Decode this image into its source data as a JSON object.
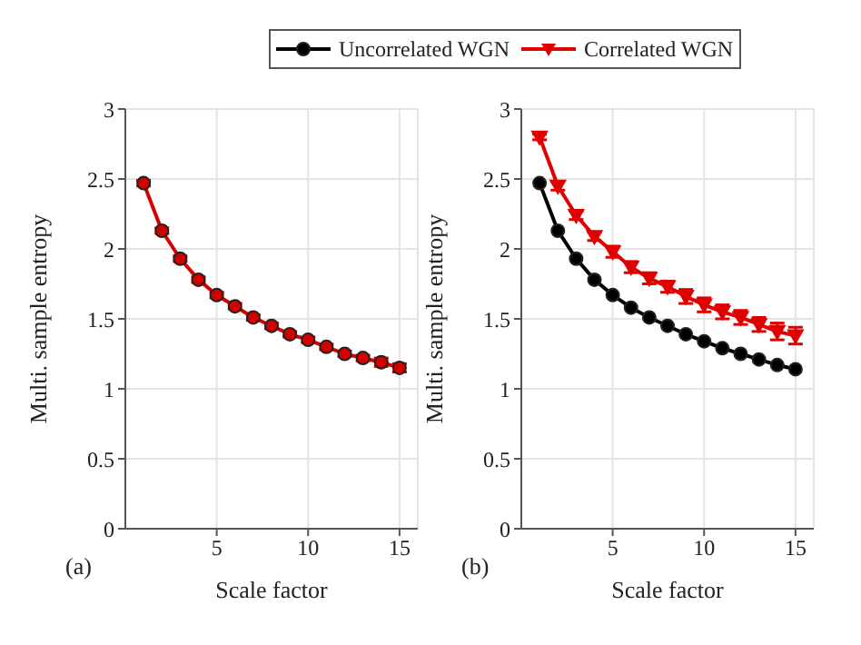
{
  "chart_data": [
    {
      "type": "line",
      "xlabel": "Scale factor",
      "ylabel": "Multi. sample entropy",
      "annotations": [
        "(a)"
      ],
      "x": [
        1,
        2,
        3,
        4,
        5,
        6,
        7,
        8,
        9,
        10,
        11,
        12,
        13,
        14,
        15
      ],
      "xlim": [
        0,
        16
      ],
      "xticks": [
        5,
        10,
        15
      ],
      "ylim": [
        0,
        3
      ],
      "yticks": [
        0,
        0.5,
        1,
        1.5,
        2,
        2.5,
        3
      ],
      "grid": true,
      "legend": false,
      "line_style": "solid",
      "series": [
        {
          "color": "#d40000",
          "marker": "circle",
          "values": [
            2.47,
            2.13,
            1.93,
            1.78,
            1.67,
            1.59,
            1.51,
            1.45,
            1.39,
            1.35,
            1.3,
            1.25,
            1.22,
            1.19,
            1.15
          ],
          "errors": [
            0.02,
            0.02,
            0.02,
            0.02,
            0.02,
            0.02,
            0.02,
            0.02,
            0.02,
            0.02,
            0.02,
            0.02,
            0.02,
            0.03,
            0.03
          ]
        }
      ]
    },
    {
      "type": "line",
      "xlabel": "Scale factor",
      "ylabel": "Multi. sample entropy",
      "annotations": [
        "(b)"
      ],
      "x": [
        1,
        2,
        3,
        4,
        5,
        6,
        7,
        8,
        9,
        10,
        11,
        12,
        13,
        14,
        15
      ],
      "xlim": [
        0,
        16
      ],
      "xticks": [
        5,
        10,
        15
      ],
      "ylim": [
        0,
        3
      ],
      "yticks": [
        0,
        0.5,
        1,
        1.5,
        2,
        2.5,
        3
      ],
      "grid": true,
      "legend": "top",
      "line_style": "solid",
      "series": [
        {
          "name": "Uncorrelated WGN",
          "color": "#000000",
          "marker": "circle",
          "values": [
            2.47,
            2.13,
            1.93,
            1.78,
            1.67,
            1.58,
            1.51,
            1.45,
            1.39,
            1.34,
            1.29,
            1.25,
            1.21,
            1.17,
            1.14
          ]
        },
        {
          "name": "Correlated WGN",
          "color": "#e00000",
          "marker": "triangle",
          "values": [
            2.8,
            2.45,
            2.24,
            2.09,
            1.98,
            1.87,
            1.79,
            1.73,
            1.66,
            1.6,
            1.55,
            1.51,
            1.46,
            1.41,
            1.38
          ],
          "errors": [
            0.02,
            0.03,
            0.03,
            0.03,
            0.04,
            0.04,
            0.04,
            0.04,
            0.05,
            0.05,
            0.05,
            0.05,
            0.05,
            0.06,
            0.06
          ]
        }
      ]
    }
  ]
}
